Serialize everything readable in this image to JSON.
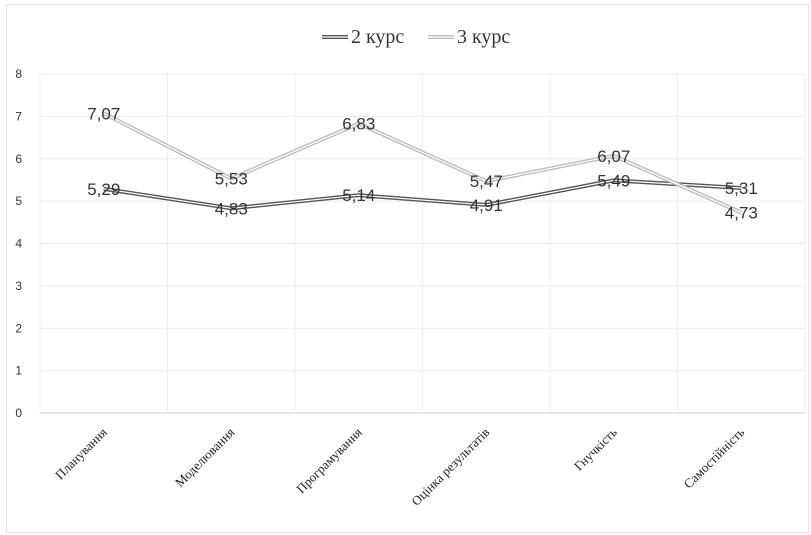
{
  "chart_data": {
    "type": "line",
    "categories": [
      "Планування",
      "Моделювання",
      "Програмування",
      "Оцінка результатів",
      "Гнучкість",
      "Самостійність"
    ],
    "series": [
      {
        "name": "2 курс",
        "values": [
          5.29,
          4.83,
          5.14,
          4.91,
          5.49,
          5.31
        ],
        "labels": [
          "5,29",
          "4,83",
          "5,14",
          "4,91",
          "5,49",
          "5,31"
        ],
        "color": "#555555"
      },
      {
        "name": "3 курс",
        "values": [
          7.07,
          5.53,
          6.83,
          5.47,
          6.07,
          4.73
        ],
        "labels": [
          "7,07",
          "5,53",
          "6,83",
          "5,47",
          "6,07",
          "4,73"
        ],
        "color": "#bdbdbd"
      }
    ],
    "ylim": [
      0,
      8
    ],
    "yticks": [
      "0",
      "1",
      "2",
      "3",
      "4",
      "5",
      "6",
      "7",
      "8"
    ],
    "grid": true,
    "legend": "top"
  }
}
